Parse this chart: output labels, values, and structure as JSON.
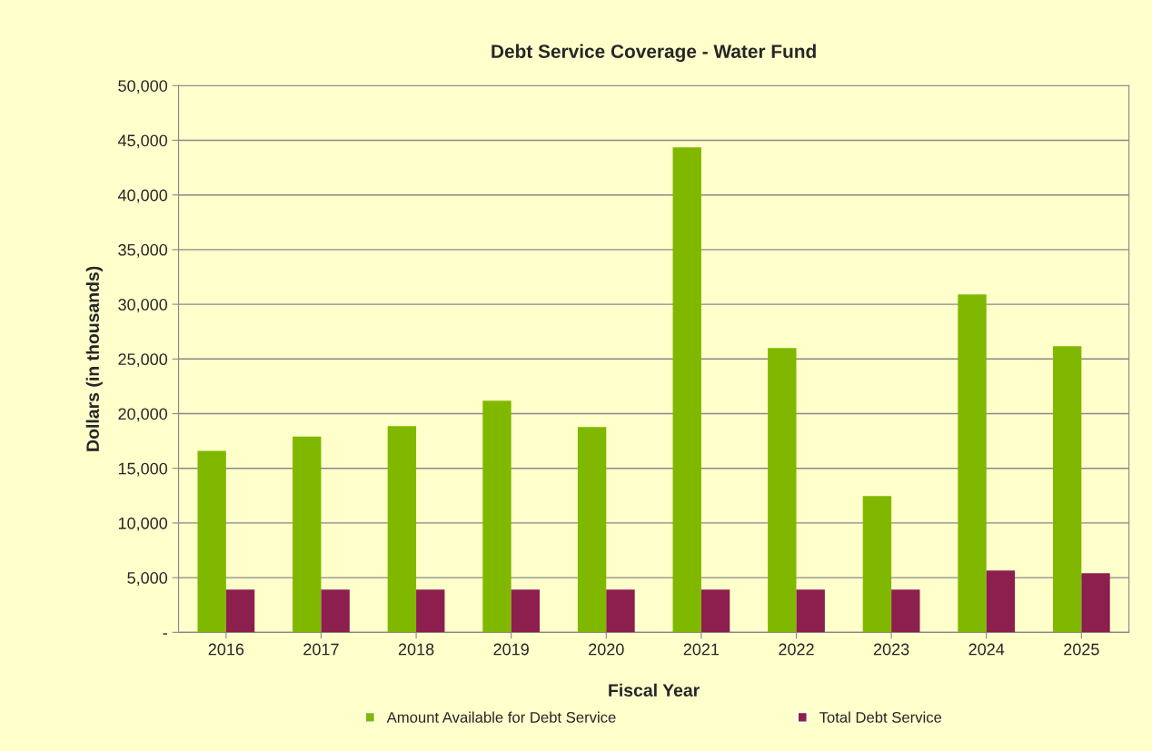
{
  "chart_data": {
    "type": "bar",
    "title": "Debt Service Coverage - Water Fund",
    "xlabel": "Fiscal Year",
    "ylabel": "Dollars (in thousands)",
    "categories": [
      "2016",
      "2017",
      "2018",
      "2019",
      "2020",
      "2021",
      "2022",
      "2023",
      "2024",
      "2025"
    ],
    "series": [
      {
        "name": "Amount Available for Debt Service",
        "color": "#80b800",
        "values": [
          16600,
          17900,
          18850,
          21180,
          18770,
          44350,
          26000,
          12460,
          30900,
          26160
        ]
      },
      {
        "name": "Total Debt Service",
        "color": "#8c1f4e",
        "values": [
          3900,
          3900,
          3900,
          3900,
          3900,
          3900,
          3900,
          3900,
          5650,
          5400
        ]
      }
    ],
    "ylim": [
      0,
      50000
    ],
    "yticks": [
      {
        "value": 0,
        "label": "-"
      },
      {
        "value": 5000,
        "label": "5,000"
      },
      {
        "value": 10000,
        "label": "10,000"
      },
      {
        "value": 15000,
        "label": "15,000"
      },
      {
        "value": 20000,
        "label": "20,000"
      },
      {
        "value": 25000,
        "label": "25,000"
      },
      {
        "value": 30000,
        "label": "30,000"
      },
      {
        "value": 35000,
        "label": "35,000"
      },
      {
        "value": 40000,
        "label": "40,000"
      },
      {
        "value": 45000,
        "label": "45,000"
      },
      {
        "value": 50000,
        "label": "50,000"
      }
    ],
    "grid": "y",
    "legend": "bottom"
  }
}
